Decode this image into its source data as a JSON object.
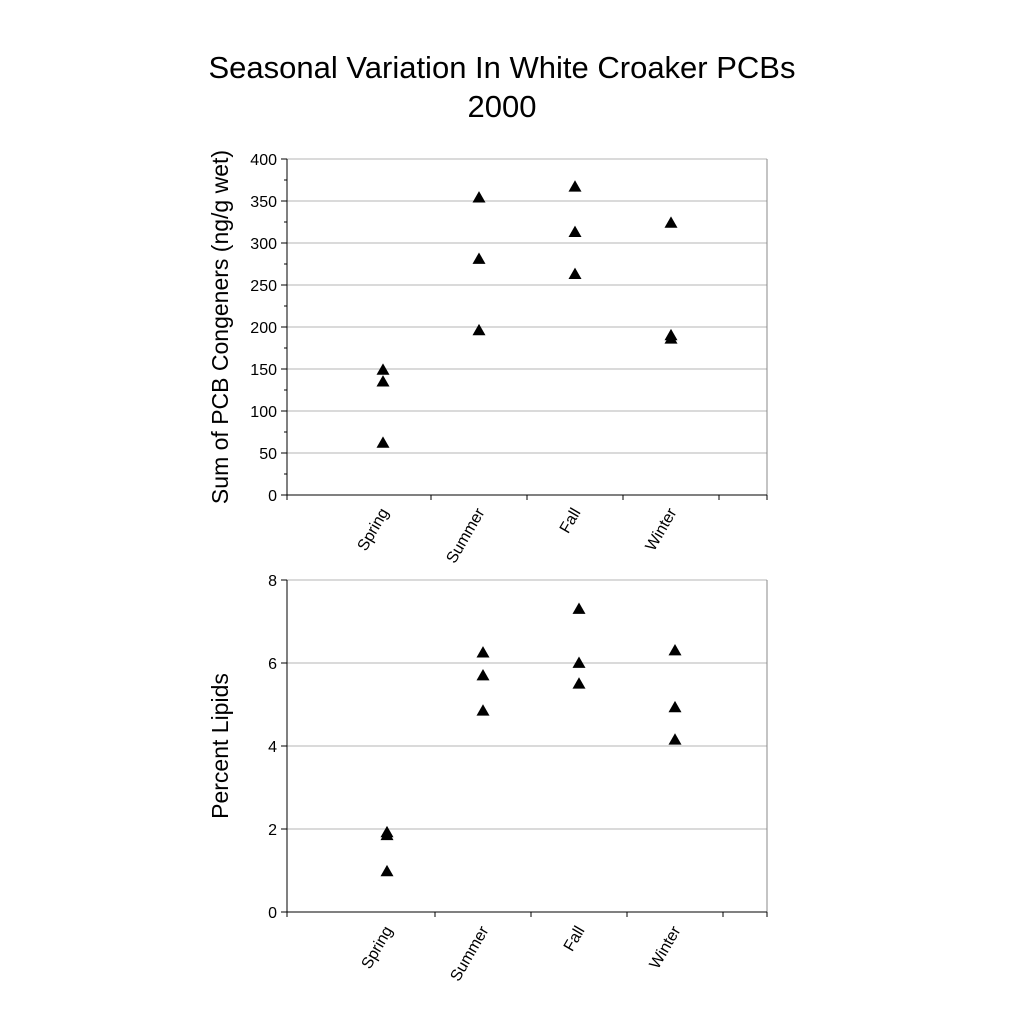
{
  "figure": {
    "title_line1": "Seasonal Variation In White Croaker PCBs",
    "title_line2": "2000"
  },
  "chart_data": [
    {
      "type": "scatter",
      "marker": "triangle",
      "ylabel": "Sum of PCB Congeners (ng/g wet)",
      "ylim": [
        0,
        400
      ],
      "yticks": [
        0,
        50,
        100,
        150,
        200,
        250,
        300,
        350,
        400
      ],
      "grid": true,
      "categories": [
        "Spring",
        "Summer",
        "Fall",
        "Winter"
      ],
      "points": [
        {
          "category": "Spring",
          "value": 149
        },
        {
          "category": "Spring",
          "value": 135
        },
        {
          "category": "Spring",
          "value": 62
        },
        {
          "category": "Summer",
          "value": 354
        },
        {
          "category": "Summer",
          "value": 281
        },
        {
          "category": "Summer",
          "value": 196
        },
        {
          "category": "Fall",
          "value": 367
        },
        {
          "category": "Fall",
          "value": 313
        },
        {
          "category": "Fall",
          "value": 263
        },
        {
          "category": "Winter",
          "value": 324
        },
        {
          "category": "Winter",
          "value": 190
        },
        {
          "category": "Winter",
          "value": 186
        }
      ]
    },
    {
      "type": "scatter",
      "marker": "triangle",
      "ylabel": "Percent Lipids",
      "ylim": [
        0,
        8
      ],
      "yticks": [
        0,
        2,
        4,
        6,
        8
      ],
      "grid": true,
      "categories": [
        "Spring",
        "Summer",
        "Fall",
        "Winter"
      ],
      "points": [
        {
          "category": "Spring",
          "value": 1.92
        },
        {
          "category": "Spring",
          "value": 1.85
        },
        {
          "category": "Spring",
          "value": 0.98
        },
        {
          "category": "Summer",
          "value": 6.25
        },
        {
          "category": "Summer",
          "value": 5.7
        },
        {
          "category": "Summer",
          "value": 4.85
        },
        {
          "category": "Fall",
          "value": 7.3
        },
        {
          "category": "Fall",
          "value": 6.0
        },
        {
          "category": "Fall",
          "value": 5.5
        },
        {
          "category": "Winter",
          "value": 6.3
        },
        {
          "category": "Winter",
          "value": 4.93
        },
        {
          "category": "Winter",
          "value": 4.15
        }
      ]
    }
  ]
}
